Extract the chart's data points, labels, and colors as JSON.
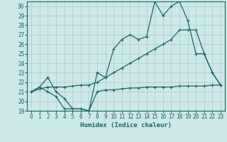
{
  "xlabel": "Humidex (Indice chaleur)",
  "bg_color": "#cce8e8",
  "grid_color": "#aacccc",
  "line_color": "#1a6666",
  "xlim": [
    -0.5,
    23.5
  ],
  "ylim": [
    19,
    30.5
  ],
  "yticks": [
    19,
    20,
    21,
    22,
    23,
    24,
    25,
    26,
    27,
    28,
    29,
    30
  ],
  "xticks": [
    0,
    1,
    2,
    3,
    4,
    5,
    6,
    7,
    8,
    9,
    10,
    11,
    12,
    13,
    14,
    15,
    16,
    17,
    18,
    19,
    20,
    21,
    22,
    23
  ],
  "line1_x": [
    0,
    1,
    2,
    3,
    4,
    5,
    6,
    7,
    8,
    9,
    10,
    11,
    12,
    13,
    14,
    15,
    16,
    17,
    18,
    19,
    20,
    21,
    22,
    23
  ],
  "line1_y": [
    21.0,
    21.5,
    21.0,
    20.5,
    19.2,
    19.2,
    19.2,
    19.0,
    21.0,
    21.2,
    21.2,
    21.3,
    21.4,
    21.4,
    21.5,
    21.5,
    21.5,
    21.5,
    21.6,
    21.6,
    21.6,
    21.6,
    21.7,
    21.7
  ],
  "line2_x": [
    0,
    1,
    2,
    3,
    4,
    5,
    6,
    7,
    8,
    9,
    10,
    11,
    12,
    13,
    14,
    15,
    16,
    17,
    18,
    19,
    20,
    21,
    22,
    23
  ],
  "line2_y": [
    21.0,
    21.3,
    21.5,
    21.5,
    21.5,
    21.6,
    21.7,
    21.7,
    22.0,
    22.5,
    23.0,
    23.5,
    24.0,
    24.5,
    25.0,
    25.5,
    26.0,
    26.5,
    27.5,
    27.5,
    27.5,
    25.0,
    23.0,
    21.7
  ],
  "line3_x": [
    0,
    1,
    2,
    3,
    4,
    5,
    6,
    7,
    8,
    9,
    10,
    11,
    12,
    13,
    14,
    15,
    16,
    17,
    18,
    19,
    20,
    21,
    22,
    23
  ],
  "line3_y": [
    21.0,
    21.5,
    22.5,
    21.0,
    20.3,
    19.2,
    19.2,
    19.0,
    23.0,
    22.5,
    25.5,
    26.5,
    27.0,
    26.5,
    26.8,
    30.5,
    29.0,
    30.0,
    30.5,
    28.5,
    25.0,
    25.0,
    23.0,
    21.7
  ]
}
